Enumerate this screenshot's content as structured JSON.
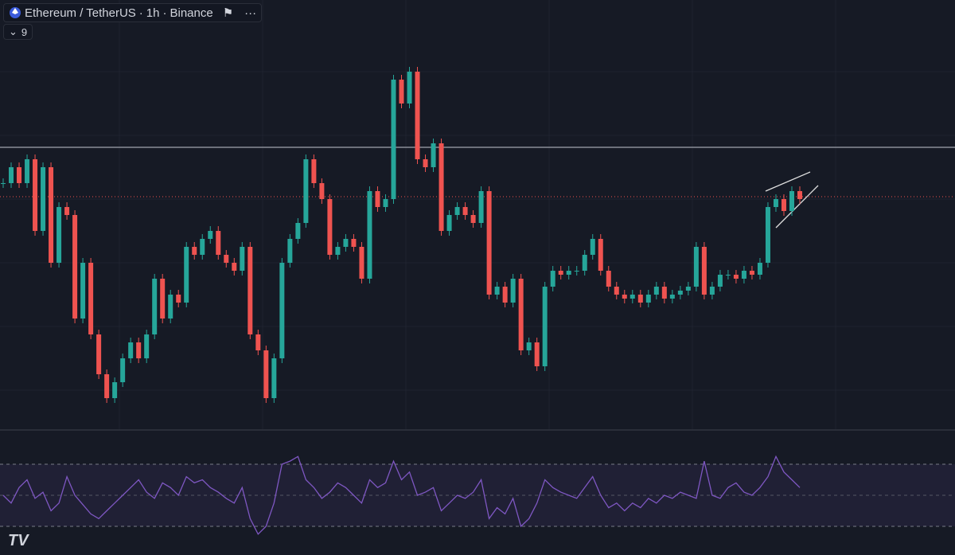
{
  "header": {
    "symbol": "Ethereum / TetherUS",
    "interval": "1h",
    "exchange": "Binance",
    "indicator_count": "9"
  },
  "chart_data": {
    "type": "candlestick",
    "up_color": "#26a69a",
    "down_color": "#ef5350",
    "rsi_color": "#7e57c2",
    "close": [
      370,
      390,
      370,
      400,
      310,
      390,
      270,
      340,
      330,
      200,
      270,
      180,
      130,
      100,
      120,
      150,
      170,
      150,
      180,
      250,
      200,
      230,
      220,
      290,
      280,
      300,
      310,
      280,
      270,
      260,
      290,
      180,
      160,
      100,
      150,
      270,
      300,
      320,
      400,
      370,
      350,
      280,
      290,
      300,
      290,
      250,
      360,
      340,
      350,
      500,
      470,
      510,
      400,
      390,
      420,
      310,
      330,
      340,
      330,
      320,
      360,
      230,
      240,
      220,
      250,
      160,
      170,
      140,
      240,
      260,
      255,
      260,
      260,
      280,
      300,
      260,
      240,
      230,
      225,
      230,
      220,
      230,
      240,
      225,
      230,
      235,
      240,
      290,
      230,
      240,
      255,
      255,
      250,
      260,
      255,
      270,
      340,
      350,
      335,
      360,
      350
    ],
    "rsi": [
      50,
      45,
      55,
      60,
      48,
      52,
      40,
      45,
      62,
      50,
      44,
      38,
      35,
      40,
      45,
      50,
      55,
      60,
      52,
      48,
      58,
      55,
      50,
      62,
      58,
      60,
      55,
      52,
      48,
      45,
      55,
      35,
      25,
      30,
      45,
      70,
      72,
      75,
      60,
      55,
      48,
      52,
      58,
      55,
      50,
      45,
      60,
      55,
      58,
      72,
      60,
      65,
      50,
      52,
      55,
      40,
      45,
      50,
      48,
      52,
      60,
      35,
      42,
      38,
      48,
      30,
      35,
      45,
      60,
      55,
      52,
      50,
      48,
      55,
      62,
      50,
      42,
      45,
      40,
      45,
      42,
      48,
      45,
      50,
      48,
      52,
      50,
      48,
      72,
      50,
      48,
      55,
      58,
      52,
      50,
      55,
      62,
      75,
      65,
      60,
      55
    ]
  }
}
